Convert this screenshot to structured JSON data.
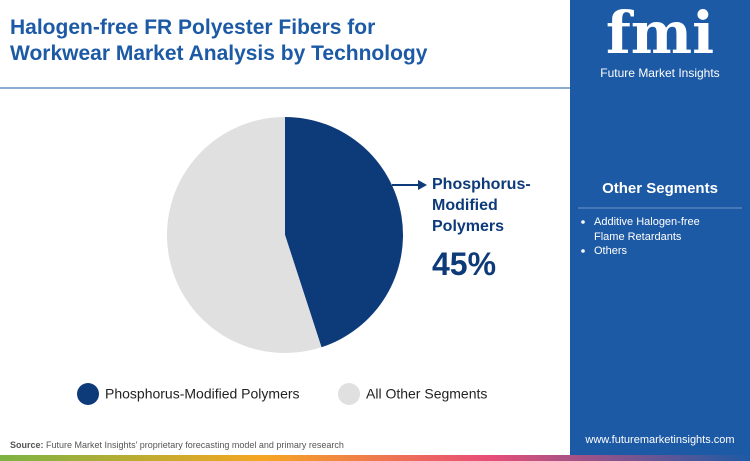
{
  "chart_data": {
    "type": "pie",
    "title": "Halogen-free FR Polyester Fibers for Workwear Market Analysis by Technology",
    "categories": [
      "Phosphorus-Modified Polymers",
      "All Other Segments"
    ],
    "values": [
      45,
      55
    ],
    "value_labels": [
      "45%",
      null
    ],
    "colors": [
      "#0d3b7a",
      "#e0e0e0"
    ]
  },
  "side_panel": {
    "logo": "fmi",
    "brand": "Future Market Insights",
    "heading": "Other Segments",
    "items": [
      "Additive Halogen-free Flame Retardants",
      "Others"
    ]
  },
  "footer": {
    "source_label": "Source:",
    "source": "Future Market Insights' proprietary forecasting model and primary research",
    "website": "www.futuremarketinsights.com"
  }
}
